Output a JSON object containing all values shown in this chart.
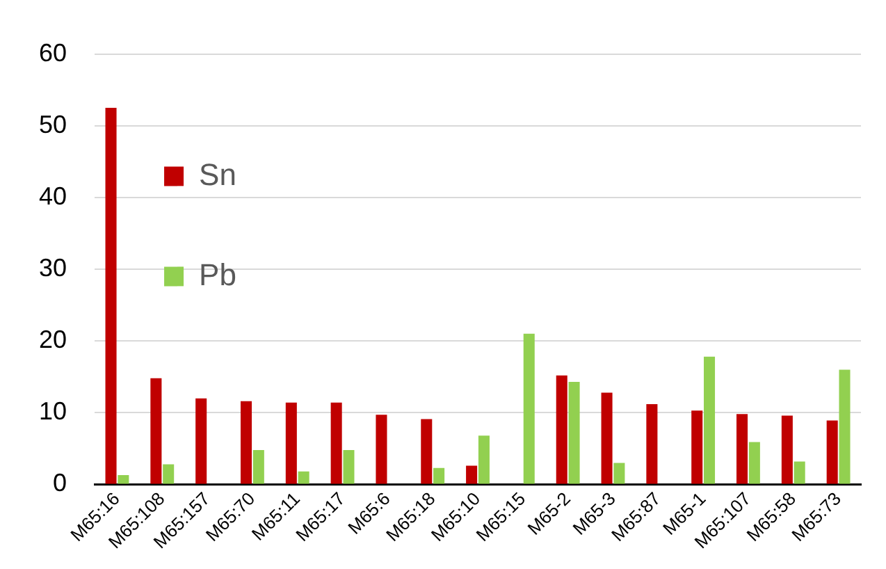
{
  "chart_data": {
    "type": "bar",
    "categories": [
      "M65:16",
      "M65:108",
      "M65:157",
      "M65:70",
      "M65:11",
      "M65:17",
      "M65:6",
      "M65:18",
      "M65:10",
      "M65:15",
      "M65-2",
      "M65-3",
      "M65:87",
      "M65-1",
      "M65:107",
      "M65:58",
      "M65:73"
    ],
    "series": [
      {
        "name": "Sn",
        "color": "#c00000",
        "values": [
          52.5,
          14.8,
          12,
          11.6,
          11.4,
          11.4,
          9.7,
          9.1,
          2.6,
          null,
          15.2,
          12.8,
          11.2,
          10.3,
          9.8,
          9.6,
          8.9
        ]
      },
      {
        "name": "Pb",
        "color": "#92d050",
        "values": [
          1.3,
          2.8,
          null,
          4.8,
          1.8,
          4.8,
          null,
          2.3,
          6.8,
          21,
          14.3,
          3,
          null,
          17.8,
          5.9,
          3.2,
          16
        ]
      }
    ],
    "ylim": [
      0,
      60
    ],
    "yticks": [
      0,
      10,
      20,
      30,
      40,
      50,
      60
    ],
    "grid": "y",
    "legend": "top"
  }
}
